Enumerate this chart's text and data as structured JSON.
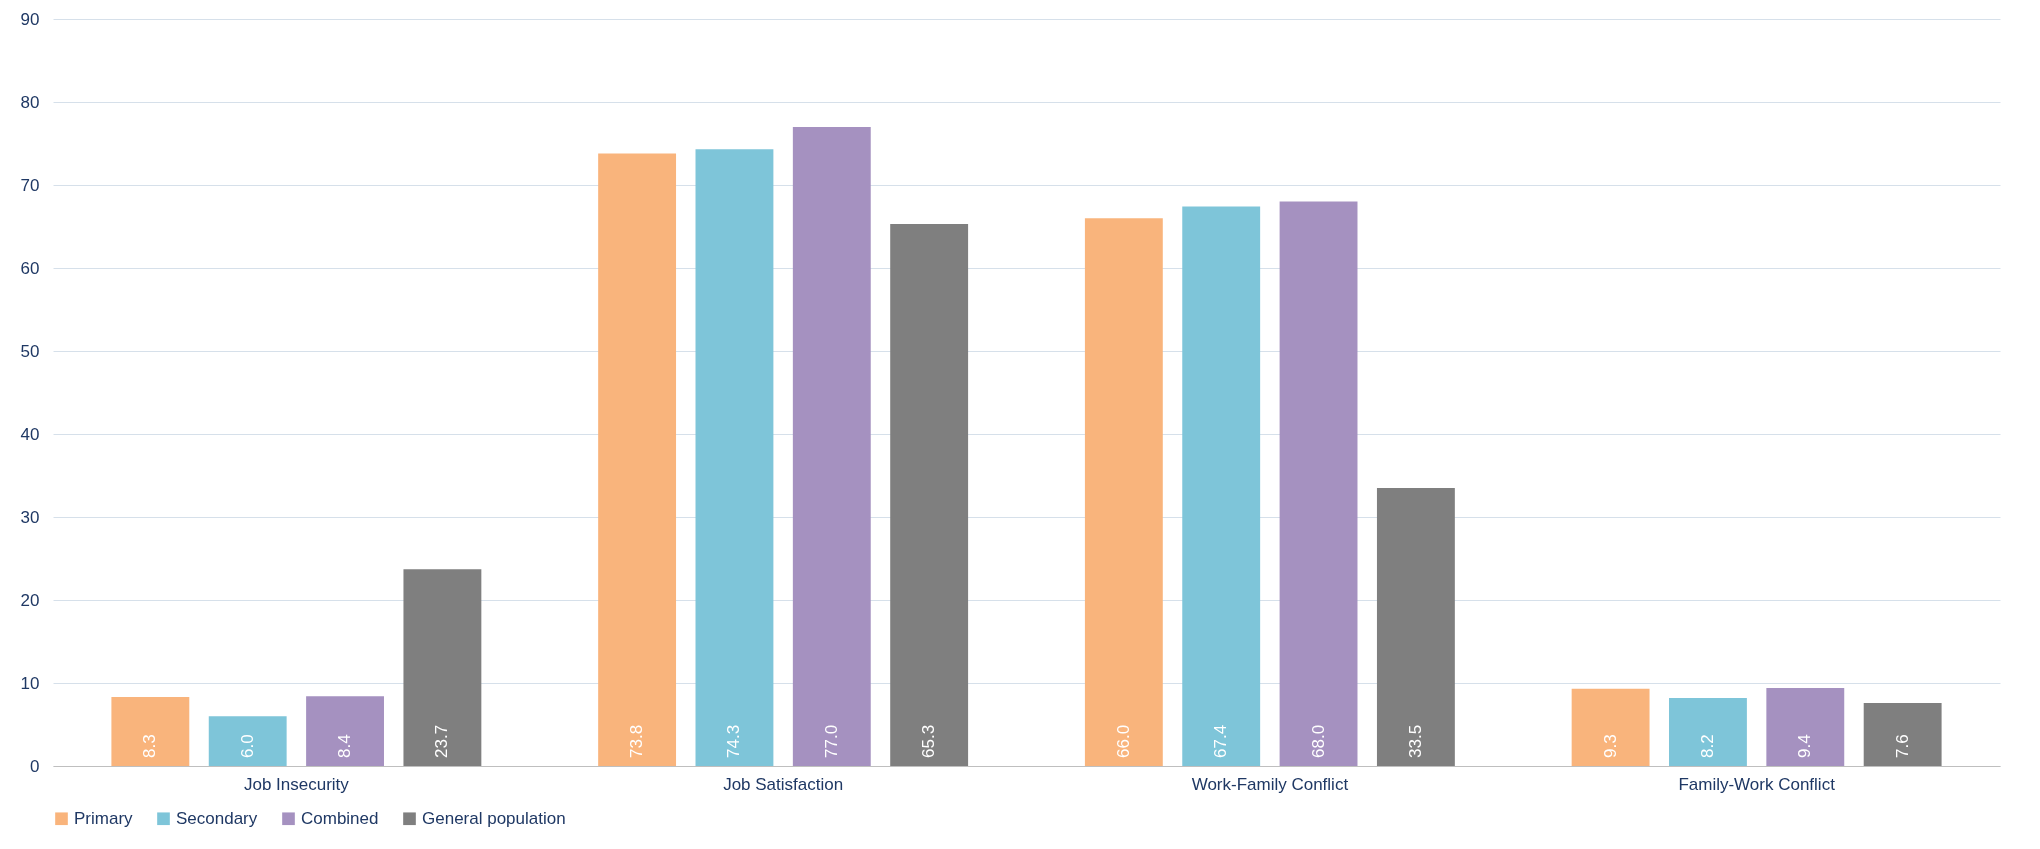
{
  "chart_data": {
    "type": "bar",
    "categories": [
      "Job Insecurity",
      "Job Satisfaction",
      "Work-Family Conflict",
      "Family-Work Conflict"
    ],
    "series": [
      {
        "name": "Primary",
        "color": "#f9b47c",
        "values": [
          8.3,
          73.8,
          66.0,
          9.3
        ],
        "value_labels": [
          "8.3",
          "73.8",
          "66.0",
          "9.3"
        ]
      },
      {
        "name": "Secondary",
        "color": "#7ec5d9",
        "values": [
          6.0,
          74.3,
          67.4,
          8.2
        ],
        "value_labels": [
          "6.0",
          "74.3",
          "67.4",
          "8.2"
        ]
      },
      {
        "name": "Combined",
        "color": "#a591c0",
        "values": [
          8.4,
          77.0,
          68.0,
          9.4
        ],
        "value_labels": [
          "8.4",
          "77.0",
          "68.0",
          "9.4"
        ]
      },
      {
        "name": "General population",
        "color": "#7f7f7f",
        "values": [
          23.7,
          65.3,
          33.5,
          7.6
        ],
        "value_labels": [
          "23.7",
          "65.3",
          "33.5",
          "7.6"
        ]
      }
    ],
    "ylim": [
      0,
      90
    ],
    "yticks": [
      0,
      10,
      20,
      30,
      40,
      50,
      60,
      70,
      80,
      90
    ],
    "grid": "y",
    "legend": "bottom"
  }
}
